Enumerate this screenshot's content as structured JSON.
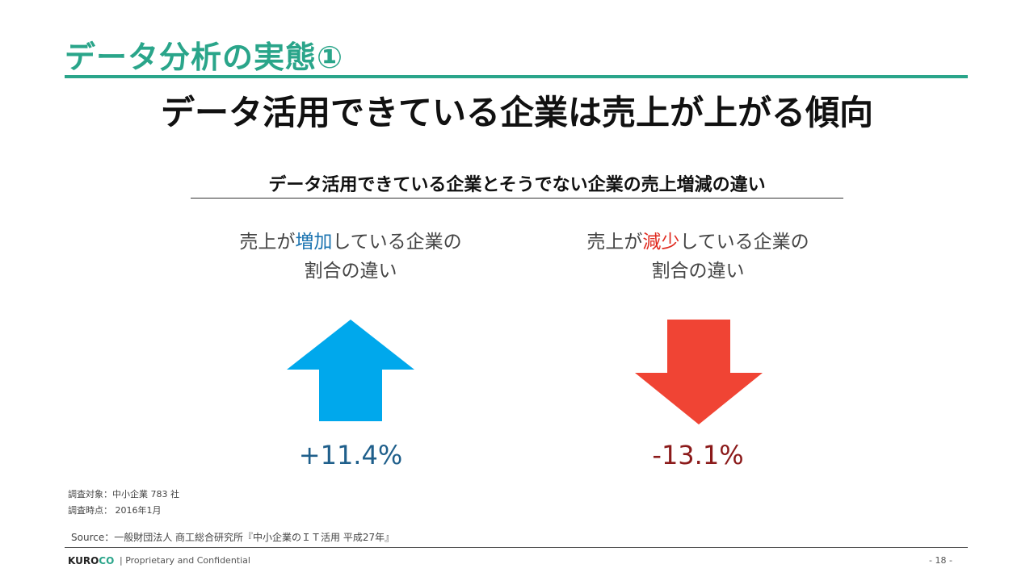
{
  "section_title": "データ分析の実態①",
  "main_title": "データ活用できている企業は売上が上がる傾向",
  "sub_title": "データ活用できている企業とそうでない企業の売上増減の違い",
  "increase": {
    "label_pre": "売上が",
    "label_hl": "増加",
    "label_post": "している企業の",
    "label_line2": "割合の違い",
    "value": "+11.4%",
    "arrow_color": "#00a8ec",
    "icon": "arrow-up-icon"
  },
  "decrease": {
    "label_pre": "売上が",
    "label_hl": "減少",
    "label_post": "している企業の",
    "label_line2": "割合の違い",
    "value": "-13.1%",
    "arrow_color": "#f04434",
    "icon": "arrow-down-icon"
  },
  "notes": {
    "target": "調査対象：中小企業 783 社",
    "date": "調査時点： 2016年1月",
    "source": "Source：一般財団法人 商工総合研究所『中小企業のＩＴ活用 平成27年』"
  },
  "footer": {
    "logo_a": "KURO",
    "logo_b": "CO",
    "confidential": "|  Proprietary and Confidential",
    "page": "- 18 -"
  },
  "colors": {
    "accent": "#2aa58a"
  }
}
